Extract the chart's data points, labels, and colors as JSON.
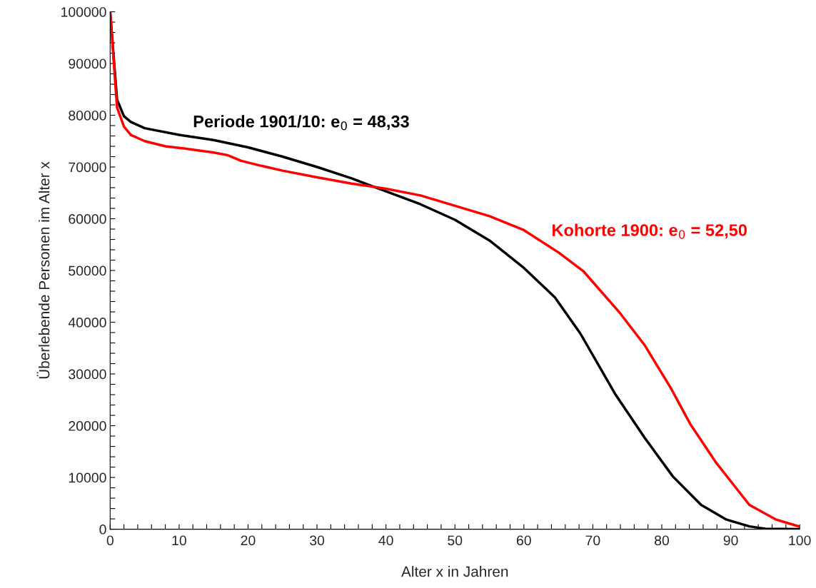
{
  "chart_data": {
    "type": "line",
    "xlabel": "Alter x in Jahren",
    "ylabel": "Überlebende Personen im Alter x",
    "xlim": [
      0,
      100
    ],
    "ylim": [
      0,
      100000
    ],
    "xticks": [
      0,
      {
        "value": 2,
        "label": null
      },
      {
        "value": 4,
        "label": null
      },
      {
        "value": 6,
        "label": null
      },
      {
        "value": 8,
        "label": null
      },
      10,
      {
        "value": 12,
        "label": null
      },
      {
        "value": 14,
        "label": null
      },
      {
        "value": 16,
        "label": null
      },
      {
        "value": 18,
        "label": null
      },
      20,
      {
        "value": 22,
        "label": null
      },
      {
        "value": 24,
        "label": null
      },
      {
        "value": 26,
        "label": null
      },
      {
        "value": 28,
        "label": null
      },
      30,
      {
        "value": 32,
        "label": null
      },
      {
        "value": 34,
        "label": null
      },
      {
        "value": 36,
        "label": null
      },
      {
        "value": 38,
        "label": null
      },
      40,
      {
        "value": 42,
        "label": null
      },
      {
        "value": 44,
        "label": null
      },
      {
        "value": 46,
        "label": null
      },
      {
        "value": 48,
        "label": null
      },
      50,
      {
        "value": 52,
        "label": null
      },
      {
        "value": 54,
        "label": null
      },
      {
        "value": 56,
        "label": null
      },
      {
        "value": 58,
        "label": null
      },
      60,
      {
        "value": 62,
        "label": null
      },
      {
        "value": 64,
        "label": null
      },
      {
        "value": 66,
        "label": null
      },
      {
        "value": 68,
        "label": null
      },
      70,
      {
        "value": 72,
        "label": null
      },
      {
        "value": 74,
        "label": null
      },
      {
        "value": 76,
        "label": null
      },
      {
        "value": 78,
        "label": null
      },
      80,
      {
        "value": 82,
        "label": null
      },
      {
        "value": 84,
        "label": null
      },
      {
        "value": 86,
        "label": null
      },
      {
        "value": 88,
        "label": null
      },
      90,
      {
        "value": 92,
        "label": null
      },
      {
        "value": 94,
        "label": null
      },
      {
        "value": 96,
        "label": null
      },
      {
        "value": 98,
        "label": null
      },
      100
    ],
    "yticks": [
      0,
      {
        "value": 2000,
        "label": null
      },
      {
        "value": 4000,
        "label": null
      },
      {
        "value": 6000,
        "label": null
      },
      {
        "value": 8000,
        "label": null
      },
      10000,
      {
        "value": 12000,
        "label": null
      },
      {
        "value": 14000,
        "label": null
      },
      {
        "value": 16000,
        "label": null
      },
      {
        "value": 18000,
        "label": null
      },
      20000,
      {
        "value": 22000,
        "label": null
      },
      {
        "value": 24000,
        "label": null
      },
      {
        "value": 26000,
        "label": null
      },
      {
        "value": 28000,
        "label": null
      },
      30000,
      {
        "value": 32000,
        "label": null
      },
      {
        "value": 34000,
        "label": null
      },
      {
        "value": 36000,
        "label": null
      },
      {
        "value": 38000,
        "label": null
      },
      40000,
      {
        "value": 42000,
        "label": null
      },
      {
        "value": 44000,
        "label": null
      },
      {
        "value": 46000,
        "label": null
      },
      {
        "value": 48000,
        "label": null
      },
      50000,
      {
        "value": 52000,
        "label": null
      },
      {
        "value": 54000,
        "label": null
      },
      {
        "value": 56000,
        "label": null
      },
      {
        "value": 58000,
        "label": null
      },
      60000,
      {
        "value": 62000,
        "label": null
      },
      {
        "value": 64000,
        "label": null
      },
      {
        "value": 66000,
        "label": null
      },
      {
        "value": 68000,
        "label": null
      },
      70000,
      {
        "value": 72000,
        "label": null
      },
      {
        "value": 74000,
        "label": null
      },
      {
        "value": 76000,
        "label": null
      },
      {
        "value": 78000,
        "label": null
      },
      80000,
      {
        "value": 82000,
        "label": null
      },
      {
        "value": 84000,
        "label": null
      },
      {
        "value": 86000,
        "label": null
      },
      {
        "value": 88000,
        "label": null
      },
      90000,
      {
        "value": 92000,
        "label": null
      },
      {
        "value": 94000,
        "label": null
      },
      {
        "value": 96000,
        "label": null
      },
      {
        "value": 98000,
        "label": null
      },
      100000
    ],
    "grid": false,
    "legend": false,
    "marker": "none",
    "line_style": "solid",
    "series": [
      {
        "color": "#000000",
        "x": [
          0,
          1,
          2,
          3,
          5,
          10,
          15,
          20,
          25,
          30,
          35,
          40,
          45,
          50,
          55,
          60,
          64.5,
          68.2,
          73.3,
          77.5,
          81.6,
          85.7,
          89.3,
          92.7,
          95,
          100
        ],
        "values": [
          100000,
          83000,
          79800,
          78700,
          77500,
          76200,
          75200,
          73800,
          72000,
          70000,
          67800,
          65300,
          62800,
          59800,
          55800,
          50500,
          44800,
          37800,
          26000,
          17700,
          10200,
          4700,
          1900,
          550,
          100,
          0
        ]
      },
      {
        "color": "#ff0000",
        "x": [
          0,
          1,
          2,
          3,
          5,
          8,
          10,
          15,
          17,
          19,
          22,
          25,
          30,
          35,
          38,
          40,
          45,
          50,
          55,
          60,
          65,
          68.6,
          73.8,
          77.5,
          81.3,
          84.1,
          87.8,
          92.7,
          96.5,
          100
        ],
        "values": [
          100000,
          81500,
          77800,
          76200,
          75000,
          74000,
          73700,
          72800,
          72300,
          71200,
          70200,
          69300,
          68000,
          66800,
          66200,
          65800,
          64500,
          62500,
          60500,
          57800,
          53500,
          49900,
          42000,
          35600,
          27300,
          20400,
          13000,
          4700,
          1900,
          500
        ]
      }
    ],
    "annotations": [
      "Periode 1901/10: e$_{0}$ = 48,33",
      "Kohorte 1900: e$_{0}$ = 52,50"
    ]
  }
}
